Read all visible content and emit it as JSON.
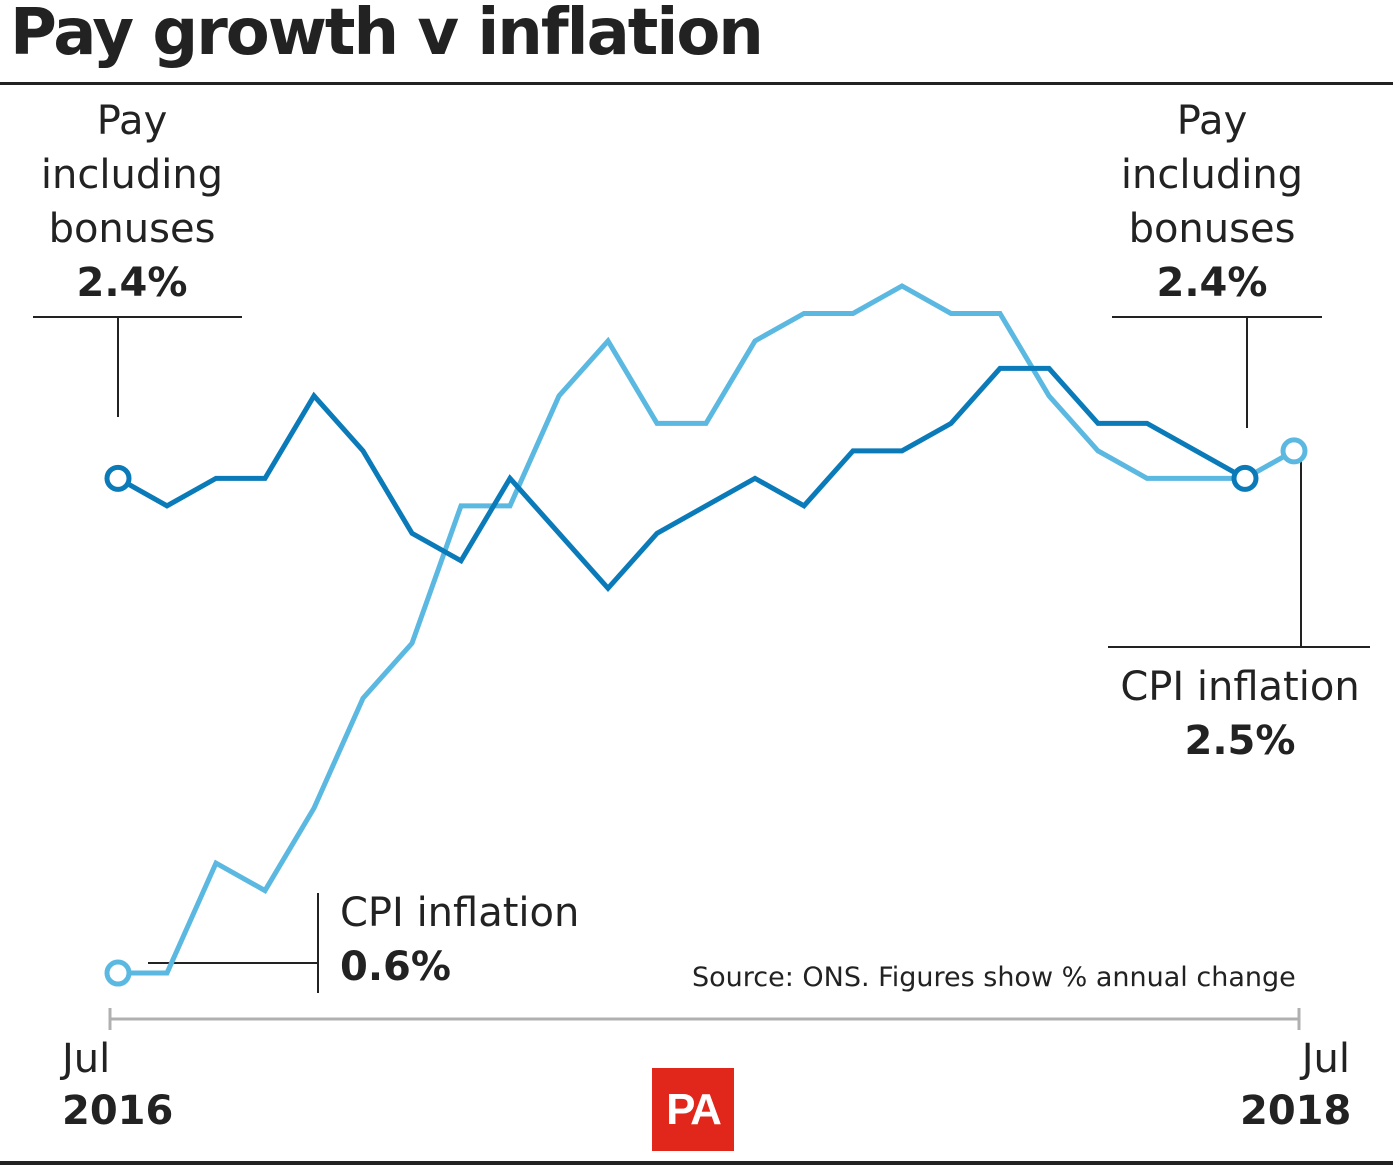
{
  "title": "Pay growth v inflation",
  "source": "Source: ONS. Figures show % annual change",
  "logo": "PA",
  "colors": {
    "pay": "#0a7ab8",
    "cpi": "#5bb8e0",
    "text": "#222222",
    "logo_bg": "#e1261c"
  },
  "annotations": {
    "pay_start": {
      "line1": "Pay",
      "line2": "including",
      "line3": "bonuses",
      "value": "2.4%"
    },
    "pay_end": {
      "line1": "Pay",
      "line2": "including",
      "line3": "bonuses",
      "value": "2.4%"
    },
    "cpi_start": {
      "label": "CPI inflation",
      "value": "0.6%"
    },
    "cpi_end": {
      "label": "CPI inflation",
      "value": "2.5%"
    }
  },
  "x_axis": {
    "start": {
      "month": "Jul",
      "year": "2016"
    },
    "end": {
      "month": "Jul",
      "year": "2018"
    }
  },
  "chart_data": {
    "type": "line",
    "x": [
      "Jul 2016",
      "Aug 2016",
      "Sep 2016",
      "Oct 2016",
      "Nov 2016",
      "Dec 2016",
      "Jan 2017",
      "Feb 2017",
      "Mar 2017",
      "Apr 2017",
      "May 2017",
      "Jun 2017",
      "Jul 2017",
      "Aug 2017",
      "Sep 2017",
      "Oct 2017",
      "Nov 2017",
      "Dec 2017",
      "Jan 2018",
      "Feb 2018",
      "Mar 2018",
      "Apr 2018",
      "May 2018",
      "Jun 2018",
      "Jul 2018"
    ],
    "ylim": [
      0.4,
      3.3
    ],
    "series": [
      {
        "name": "Pay including bonuses",
        "values": [
          2.4,
          2.3,
          2.4,
          2.4,
          2.7,
          2.5,
          2.2,
          2.1,
          2.4,
          2.2,
          2.0,
          2.2,
          2.3,
          2.4,
          2.3,
          2.5,
          2.5,
          2.6,
          2.8,
          2.8,
          2.6,
          2.6,
          2.5,
          2.4,
          null
        ]
      },
      {
        "name": "CPI inflation",
        "values": [
          0.6,
          0.6,
          1.0,
          0.9,
          1.2,
          1.6,
          1.8,
          2.3,
          2.3,
          2.7,
          2.9,
          2.6,
          2.6,
          2.9,
          3.0,
          3.0,
          3.1,
          3.0,
          3.0,
          2.7,
          2.5,
          2.4,
          2.4,
          2.4,
          2.5
        ]
      }
    ]
  }
}
